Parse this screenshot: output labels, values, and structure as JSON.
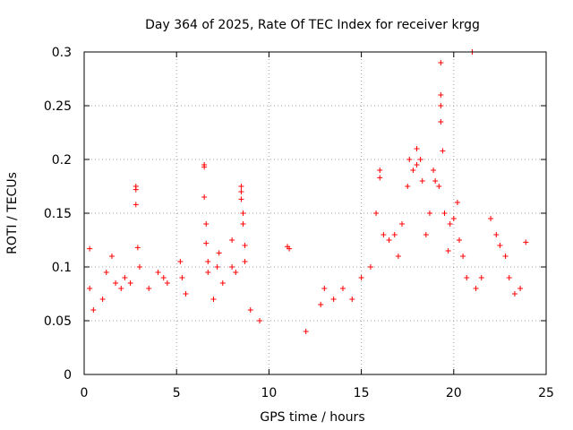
{
  "chart_data": {
    "type": "scatter",
    "title": "Day 364 of 2025, Rate Of TEC Index for receiver krgg",
    "xlabel": "GPS time / hours",
    "ylabel": "ROTI / TECUs",
    "xlim": [
      0,
      25
    ],
    "ylim": [
      0,
      0.3
    ],
    "x_ticks": [
      "0",
      "5",
      "10",
      "15",
      "20",
      "25"
    ],
    "y_ticks": [
      "0",
      "0.05",
      "0.1",
      "0.15",
      "0.2",
      "0.25",
      "0.3"
    ],
    "grid": true,
    "marker": "+",
    "color": "#ff0000",
    "series": [
      {
        "values": [
          [
            0.3,
            0.117
          ],
          [
            0.3,
            0.08
          ],
          [
            0.5,
            0.06
          ],
          [
            1.0,
            0.07
          ],
          [
            1.2,
            0.095
          ],
          [
            1.5,
            0.11
          ],
          [
            1.7,
            0.085
          ],
          [
            2.0,
            0.08
          ],
          [
            2.2,
            0.09
          ],
          [
            2.5,
            0.085
          ],
          [
            2.8,
            0.175
          ],
          [
            2.8,
            0.172
          ],
          [
            2.8,
            0.158
          ],
          [
            2.9,
            0.118
          ],
          [
            3.0,
            0.1
          ],
          [
            3.5,
            0.08
          ],
          [
            4.0,
            0.095
          ],
          [
            4.3,
            0.09
          ],
          [
            4.5,
            0.085
          ],
          [
            5.2,
            0.105
          ],
          [
            5.3,
            0.09
          ],
          [
            5.5,
            0.075
          ],
          [
            6.5,
            0.195
          ],
          [
            6.5,
            0.193
          ],
          [
            6.5,
            0.165
          ],
          [
            6.6,
            0.14
          ],
          [
            6.6,
            0.122
          ],
          [
            6.7,
            0.105
          ],
          [
            6.7,
            0.095
          ],
          [
            7.0,
            0.07
          ],
          [
            7.2,
            0.1
          ],
          [
            7.3,
            0.113
          ],
          [
            7.5,
            0.085
          ],
          [
            8.0,
            0.125
          ],
          [
            8.0,
            0.1
          ],
          [
            8.2,
            0.095
          ],
          [
            8.5,
            0.175
          ],
          [
            8.5,
            0.17
          ],
          [
            8.5,
            0.163
          ],
          [
            8.6,
            0.15
          ],
          [
            8.6,
            0.14
          ],
          [
            8.7,
            0.12
          ],
          [
            8.7,
            0.105
          ],
          [
            9.0,
            0.06
          ],
          [
            9.5,
            0.05
          ],
          [
            11.0,
            0.119
          ],
          [
            11.1,
            0.117
          ],
          [
            12.0,
            0.04
          ],
          [
            12.8,
            0.065
          ],
          [
            13.0,
            0.08
          ],
          [
            13.5,
            0.07
          ],
          [
            14.0,
            0.08
          ],
          [
            14.5,
            0.07
          ],
          [
            15.0,
            0.09
          ],
          [
            15.5,
            0.1
          ],
          [
            15.8,
            0.15
          ],
          [
            16.0,
            0.19
          ],
          [
            16.0,
            0.183
          ],
          [
            16.2,
            0.13
          ],
          [
            16.5,
            0.125
          ],
          [
            16.8,
            0.13
          ],
          [
            17.0,
            0.11
          ],
          [
            17.2,
            0.14
          ],
          [
            17.5,
            0.175
          ],
          [
            17.6,
            0.2
          ],
          [
            17.8,
            0.19
          ],
          [
            18.0,
            0.21
          ],
          [
            18.0,
            0.195
          ],
          [
            18.2,
            0.2
          ],
          [
            18.3,
            0.18
          ],
          [
            18.5,
            0.13
          ],
          [
            18.7,
            0.15
          ],
          [
            18.9,
            0.19
          ],
          [
            19.0,
            0.18
          ],
          [
            19.2,
            0.175
          ],
          [
            19.3,
            0.29
          ],
          [
            19.3,
            0.26
          ],
          [
            19.3,
            0.25
          ],
          [
            19.3,
            0.235
          ],
          [
            19.4,
            0.208
          ],
          [
            19.5,
            0.15
          ],
          [
            19.7,
            0.115
          ],
          [
            19.8,
            0.14
          ],
          [
            20.0,
            0.145
          ],
          [
            20.2,
            0.16
          ],
          [
            20.3,
            0.125
          ],
          [
            20.5,
            0.11
          ],
          [
            20.7,
            0.09
          ],
          [
            21.0,
            0.3
          ],
          [
            21.2,
            0.08
          ],
          [
            21.5,
            0.09
          ],
          [
            22.0,
            0.145
          ],
          [
            22.3,
            0.13
          ],
          [
            22.5,
            0.12
          ],
          [
            22.8,
            0.11
          ],
          [
            23.0,
            0.09
          ],
          [
            23.3,
            0.075
          ],
          [
            23.6,
            0.08
          ],
          [
            23.9,
            0.123
          ]
        ]
      }
    ]
  }
}
